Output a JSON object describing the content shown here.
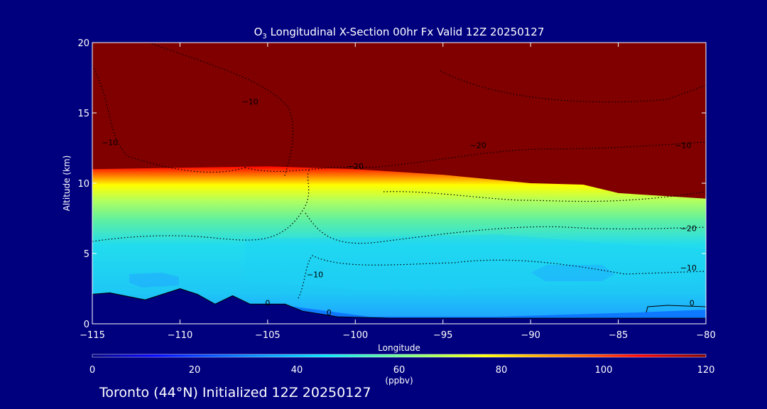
{
  "chart_data": {
    "type": "heatmap",
    "title_main": "O",
    "title_sub": "3",
    "title_rest": " Longitudinal X-Section 00hr  Fx Valid 12Z 20250127",
    "xlabel": "Longitude",
    "ylabel": "Altitude (km)",
    "xlim": [
      -115,
      -80
    ],
    "ylim": [
      0,
      20
    ],
    "x_ticks": [
      -115,
      -110,
      -105,
      -100,
      -95,
      -90,
      -85,
      -80
    ],
    "x_tick_labels": [
      "−115",
      "−110",
      "−105",
      "−100",
      "−95",
      "−90",
      "−85",
      "−80"
    ],
    "y_ticks": [
      0,
      5,
      10,
      15,
      20
    ],
    "y_tick_labels": [
      "0",
      "5",
      "10",
      "15",
      "20"
    ],
    "colorbar": {
      "range": [
        0,
        120
      ],
      "ticks": [
        0,
        20,
        40,
        60,
        80,
        100,
        120
      ],
      "tick_labels": [
        "0",
        "20",
        "40",
        "60",
        "80",
        "100",
        "120"
      ],
      "unit": "(ppbv)",
      "colors": [
        "#000080",
        "#0000ff",
        "#0080ff",
        "#00e5ff",
        "#7fff7f",
        "#ffff00",
        "#ff8000",
        "#ff0000",
        "#800000"
      ]
    },
    "tropopause_altitude_km": [
      {
        "lon": -115,
        "alt": 11.0
      },
      {
        "lon": -110,
        "alt": 11.1
      },
      {
        "lon": -105,
        "alt": 11.2
      },
      {
        "lon": -100,
        "alt": 11.0
      },
      {
        "lon": -95,
        "alt": 10.6
      },
      {
        "lon": -90,
        "alt": 10.0
      },
      {
        "lon": -87,
        "alt": 9.9
      },
      {
        "lon": -85,
        "alt": 9.3
      },
      {
        "lon": -80,
        "alt": 8.9
      }
    ],
    "terrain_altitude_km": [
      {
        "lon": -115,
        "alt": 2.1
      },
      {
        "lon": -114,
        "alt": 2.2
      },
      {
        "lon": -112,
        "alt": 1.7
      },
      {
        "lon": -110,
        "alt": 2.5
      },
      {
        "lon": -109,
        "alt": 2.1
      },
      {
        "lon": -108,
        "alt": 1.4
      },
      {
        "lon": -107,
        "alt": 2.0
      },
      {
        "lon": -106,
        "alt": 1.4
      },
      {
        "lon": -104,
        "alt": 1.4
      },
      {
        "lon": -103,
        "alt": 0.9
      },
      {
        "lon": -101,
        "alt": 0.5
      },
      {
        "lon": -98,
        "alt": 0.4
      },
      {
        "lon": -90,
        "alt": 0.4
      },
      {
        "lon": -80,
        "alt": 0.4
      }
    ],
    "contour_labels": [
      {
        "text": "−10",
        "lon": -114.0,
        "alt": 12.7
      },
      {
        "text": "−10",
        "lon": -106.0,
        "alt": 15.6
      },
      {
        "text": "−20",
        "lon": -100.0,
        "alt": 11.0
      },
      {
        "text": "−20",
        "lon": -93.0,
        "alt": 12.5
      },
      {
        "text": "−10",
        "lon": -81.3,
        "alt": 12.5
      },
      {
        "text": "−20",
        "lon": -81.0,
        "alt": 6.6
      },
      {
        "text": "−10",
        "lon": -81.0,
        "alt": 3.8
      },
      {
        "text": "−10",
        "lon": -102.3,
        "alt": 3.3
      },
      {
        "text": "0",
        "lon": -105.0,
        "alt": 1.3
      },
      {
        "text": "0",
        "lon": -101.5,
        "alt": 0.6
      },
      {
        "text": "0",
        "lon": -80.8,
        "alt": 1.3
      }
    ]
  },
  "footer": "Toronto (44°N) Initialized 12Z 20250127"
}
